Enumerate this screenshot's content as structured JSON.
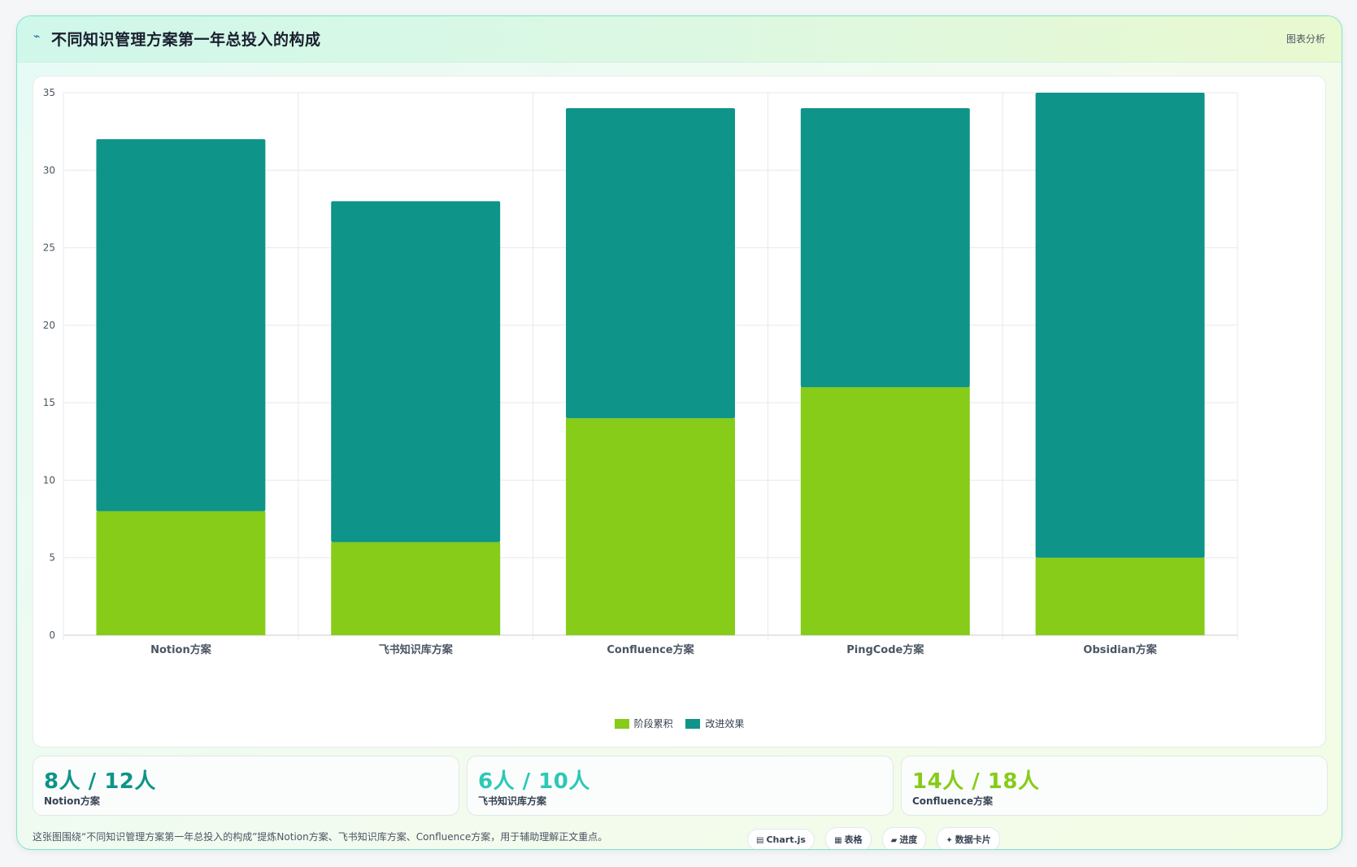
{
  "header": {
    "title": "不同知识管理方案第一年总投入的构成",
    "tag": "图表分析"
  },
  "colors": {
    "accumulation": "#86cc18",
    "improvement": "#0e9488",
    "teal_text": "#0f9488",
    "cyan_text": "#2cc9b5",
    "lime_text": "#86cc18"
  },
  "chart_data": {
    "type": "bar",
    "stacked": true,
    "categories": [
      "Notion方案",
      "飞书知识库方案",
      "Confluence方案",
      "PingCode方案",
      "Obsidian方案"
    ],
    "series": [
      {
        "name": "阶段累积",
        "values": [
          8,
          6,
          14,
          16,
          5
        ]
      },
      {
        "name": "改进效果",
        "values": [
          24,
          22,
          20,
          18,
          30
        ]
      }
    ],
    "ylim": [
      0,
      35
    ],
    "yticks": [
      0,
      5,
      10,
      15,
      20,
      25,
      30,
      35
    ],
    "grid": true,
    "legend": "bottom-center"
  },
  "stats": [
    {
      "value": "8人 / 12人",
      "label": "Notion方案"
    },
    {
      "value": "6人 / 10人",
      "label": "飞书知识库方案"
    },
    {
      "value": "14人 / 18人",
      "label": "Confluence方案"
    }
  ],
  "footer": {
    "text": "这张图围绕“不同知识管理方案第一年总投入的构成”提炼Notion方案、飞书知识库方案、Confluence方案，用于辅助理解正文重点。",
    "chips": [
      {
        "icon": "chart-icon",
        "glyph": "▤",
        "label": "Chart.js"
      },
      {
        "icon": "table-icon",
        "glyph": "▦",
        "label": "表格"
      },
      {
        "icon": "progress-icon",
        "glyph": "▰",
        "label": "进度"
      },
      {
        "icon": "sparkle-icon",
        "glyph": "✦",
        "label": "数据卡片"
      }
    ]
  }
}
